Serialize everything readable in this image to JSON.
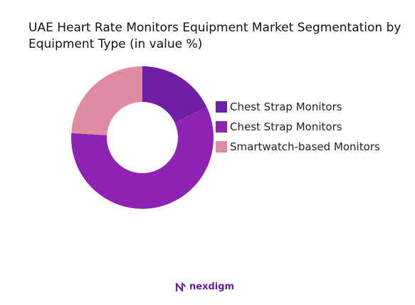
{
  "chart_data": {
    "type": "pie",
    "donut": true,
    "title": "UAE Heart Rate Monitors Equipment Market Segmentation by Equipment Type (in value %)",
    "series": [
      {
        "name": "Chest Strap Monitors",
        "value": 18,
        "color": "#6e1fa6"
      },
      {
        "name": "Chest Strap Monitors",
        "value": 58,
        "color": "#8e22b2"
      },
      {
        "name": "Smartwatch-based Monitors",
        "value": 24,
        "color": "#e08aa3"
      }
    ],
    "legend_position": "right"
  },
  "brand": {
    "name": "nexdigm"
  }
}
